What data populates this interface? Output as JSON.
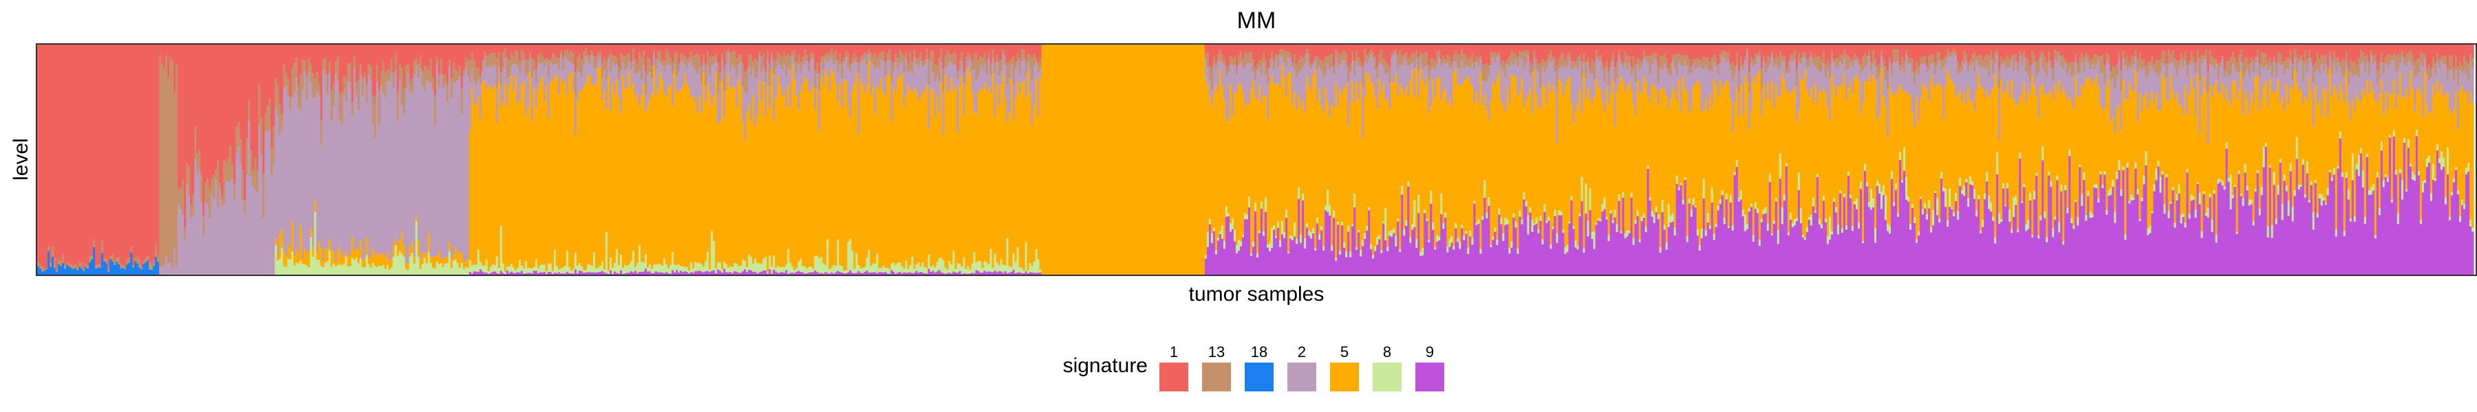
{
  "chart_data": {
    "type": "bar",
    "stacked": true,
    "normalized": true,
    "title": "MM",
    "xlabel": "tumor samples",
    "ylabel": "level",
    "ylim": [
      0,
      1
    ],
    "grid": false,
    "legend": {
      "title": "signature",
      "placement": "bottom-center",
      "entries": [
        {
          "label": "1",
          "color": "#F0625E"
        },
        {
          "label": "13",
          "color": "#C6906A"
        },
        {
          "label": "18",
          "color": "#1C7FF0"
        },
        {
          "label": "2",
          "color": "#BC9CBC"
        },
        {
          "label": "5",
          "color": "#FFAB00"
        },
        {
          "label": "8",
          "color": "#C8E89A"
        },
        {
          "label": "9",
          "color": "#BE52DC"
        }
      ]
    },
    "n_samples_approx": 1180,
    "sample_groups": [
      {
        "dominant": "1",
        "share_of_samples": 0.05,
        "mix": {
          "18": 0.04,
          "1": 0.94,
          "13": 0.02
        }
      },
      {
        "dominant": "13",
        "share_of_samples": 0.008,
        "mix": {
          "1": 0.1,
          "13": 0.85,
          "2": 0.05
        }
      },
      {
        "dominant": "1",
        "share_of_samples": 0.04,
        "mix": {
          "1": 0.55,
          "2": 0.35,
          "13": 0.1
        }
      },
      {
        "dominant": "2",
        "share_of_samples": 0.08,
        "mix": {
          "1": 0.12,
          "13": 0.08,
          "2": 0.7,
          "8": 0.05,
          "5": 0.05
        }
      },
      {
        "dominant": "5",
        "share_of_samples": 0.235,
        "mix": {
          "1": 0.05,
          "13": 0.05,
          "2": 0.1,
          "5": 0.76,
          "8": 0.03,
          "9": 0.01
        }
      },
      {
        "dominant": "5",
        "share_of_samples": 0.067,
        "mix": {
          "5": 1.0
        }
      },
      {
        "dominant": "5",
        "share_of_samples": 0.52,
        "mix": {
          "1": 0.05,
          "13": 0.04,
          "2": 0.1,
          "5": 0.56,
          "8": 0.02,
          "9": 0.23
        }
      }
    ]
  }
}
